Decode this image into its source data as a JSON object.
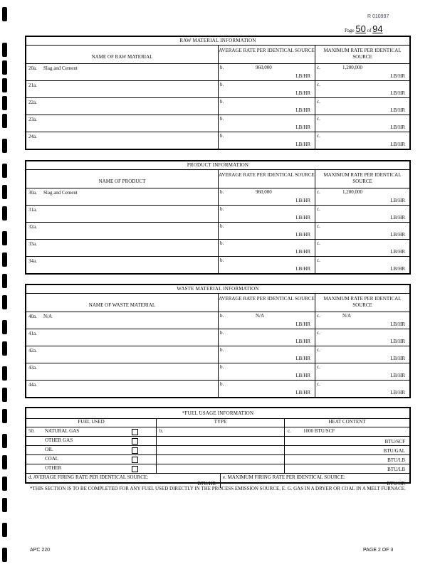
{
  "header": {
    "ref": "R 010997",
    "page_label": "Page",
    "page_num": "50",
    "of_label": "of",
    "page_total": "94"
  },
  "raw": {
    "title": "RAW MATERIAL INFORMATION",
    "col1": "NAME OF RAW MATERIAL",
    "col2": "AVERAGE RATE PER IDENTICAL SOURCE",
    "col3": "MAXIMUM RATE PER IDENTICAL SOURCE",
    "rows": [
      {
        "n": "20a.",
        "name": "Slag and Cement",
        "b": "b.",
        "avg": "960,000",
        "c": "c.",
        "max": "1,200,000",
        "unit": "LB/HR"
      },
      {
        "n": "21a.",
        "name": "",
        "b": "b.",
        "avg": "",
        "c": "c.",
        "max": "",
        "unit": "LB/HR"
      },
      {
        "n": "22a.",
        "name": "",
        "b": "b.",
        "avg": "",
        "c": "c.",
        "max": "",
        "unit": "LB/HR"
      },
      {
        "n": "23a.",
        "name": "",
        "b": "b.",
        "avg": "",
        "c": "c.",
        "max": "",
        "unit": "LB/HR"
      },
      {
        "n": "24a.",
        "name": "",
        "b": "b.",
        "avg": "",
        "c": "c.",
        "max": "",
        "unit": "LB/HR"
      }
    ]
  },
  "product": {
    "title": "PRODUCT INFORMATION",
    "col1": "NAME OF PRODUCT",
    "col2": "AVERAGE RATE PER IDENTICAL SOURCE",
    "col3": "MAXIMUM RATE PER IDENTICAL SOURCE",
    "rows": [
      {
        "n": "30a.",
        "name": "Slag and Cement",
        "b": "b.",
        "avg": "960,000",
        "c": "c.",
        "max": "1,200,000",
        "unit": "LB/HR"
      },
      {
        "n": "31a.",
        "name": "",
        "b": "b.",
        "avg": "",
        "c": "c.",
        "max": "",
        "unit": "LB/HR"
      },
      {
        "n": "32a.",
        "name": "",
        "b": "b.",
        "avg": "",
        "c": "c.",
        "max": "",
        "unit": "LB/HR"
      },
      {
        "n": "33a.",
        "name": "",
        "b": "b.",
        "avg": "",
        "c": "c.",
        "max": "",
        "unit": "LB/HR"
      },
      {
        "n": "34a.",
        "name": "",
        "b": "b.",
        "avg": "",
        "c": "c.",
        "max": "",
        "unit": "LB/HR"
      }
    ]
  },
  "waste": {
    "title": "WASTE MATERIAL INFORMATION",
    "col1": "NAME OF WASTE MATERIAL",
    "col2": "AVERAGE RATE PER IDENTICAL SOURCE",
    "col3": "MAXIMUM RATE PER IDENTICAL SOURCE",
    "rows": [
      {
        "n": "40a.",
        "name": "N/A",
        "b": "b.",
        "avg": "N/A",
        "c": "c.",
        "max": "N/A",
        "unit": "LB/HR"
      },
      {
        "n": "41a.",
        "name": "",
        "b": "b.",
        "avg": "",
        "c": "c.",
        "max": "",
        "unit": "LB/HR"
      },
      {
        "n": "42a.",
        "name": "",
        "b": "b.",
        "avg": "",
        "c": "c.",
        "max": "",
        "unit": "LB/HR"
      },
      {
        "n": "43a.",
        "name": "",
        "b": "b.",
        "avg": "",
        "c": "c.",
        "max": "",
        "unit": "LB/HR"
      },
      {
        "n": "44a.",
        "name": "",
        "b": "b.",
        "avg": "",
        "c": "c.",
        "max": "",
        "unit": "LB/HR"
      }
    ]
  },
  "fuel": {
    "title": "*FUEL USAGE INFORMATION",
    "col1": "FUEL USED",
    "col2": "TYPE",
    "col3": "HEAT CONTENT",
    "rows": [
      {
        "n": "50.",
        "fuel": "NATURAL GAS",
        "type_letter": "b.",
        "heat_letter": "c.",
        "heat": "1000 BTU/SCF",
        "unit": ""
      },
      {
        "n": "",
        "fuel": "OTHER GAS",
        "type_letter": "",
        "heat_letter": "",
        "heat": "",
        "unit": "BTU/SCF"
      },
      {
        "n": "",
        "fuel": "OIL",
        "type_letter": "",
        "heat_letter": "",
        "heat": "",
        "unit": "BTU/GAL"
      },
      {
        "n": "",
        "fuel": "COAL",
        "type_letter": "",
        "heat_letter": "",
        "heat": "",
        "unit": "BTU/LB"
      },
      {
        "n": "",
        "fuel": "OTHER",
        "type_letter": "",
        "heat_letter": "",
        "heat": "",
        "unit": "BTU/LB"
      }
    ],
    "avg_label": "d.   AVERAGE FIRING RATE PER IDENTICAL SOURCE:",
    "avg_unit": "BTU/HR",
    "max_label": "e.   MAXIMUM FIRING RATE PER IDENTICAL SOURCE:",
    "max_unit": "BTU/HR",
    "note": "*THIS SECTION IS TO BE COMPLETED FOR ANY FUEL USED DIRECTLY IN THE PROCESS EMISSION SOURCE, E. G. GAS IN A DRYER OR COAL IN A MELT FURNACE."
  },
  "footer": {
    "form": "APC 220",
    "page": "PAGE 2 OF 3"
  }
}
